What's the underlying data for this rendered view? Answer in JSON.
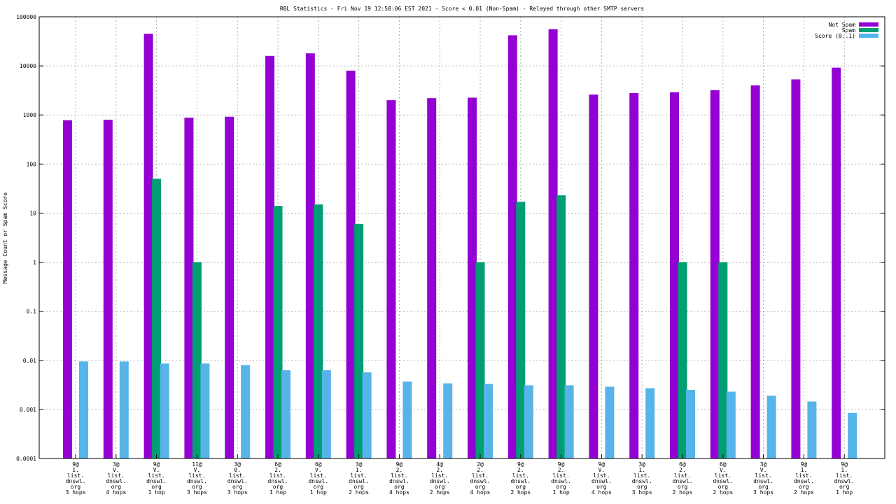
{
  "chart_data": {
    "type": "bar",
    "title": "RBL Statistics - Fri Nov 19 12:58:06 EST 2021 - Score < 0.01 (Non-Spam) - Relayed through other SMTP servers",
    "ylabel": "Message Count or Spam Score",
    "xlabel": "",
    "yscale": "log",
    "ylim": [
      0.0001,
      100000
    ],
    "yticks": [
      "0.0001",
      "0.001",
      "0.01",
      "0.1",
      "1",
      "10",
      "100",
      "1000",
      "10000",
      "100000"
    ],
    "grid": true,
    "legend_position": "top-right",
    "colors": {
      "not_spam": "#9400d3",
      "spam": "#009e73",
      "score": "#56b4e9"
    },
    "categories": [
      [
        "9@",
        "1.",
        "list.",
        "dnswl.",
        "org",
        "3 hops"
      ],
      [
        "3@",
        "V.",
        "list.",
        "dnswl.",
        "org",
        "4 hops"
      ],
      [
        "9@",
        "V.",
        "list.",
        "dnswl.",
        "org",
        "1 hop"
      ],
      [
        "11@",
        "V.",
        "list.",
        "dnswl.",
        "org",
        "3 hops"
      ],
      [
        "3@",
        "0.",
        "list.",
        "dnswl.",
        "org",
        "3 hops"
      ],
      [
        "6@",
        "2.",
        "list.",
        "dnswl.",
        "org",
        "1 hop"
      ],
      [
        "6@",
        "V.",
        "list.",
        "dnswl.",
        "org",
        "1 hop"
      ],
      [
        "3@",
        "1.",
        "list.",
        "dnswl.",
        "org",
        "2 hops"
      ],
      [
        "9@",
        "2.",
        "list.",
        "dnswl.",
        "org",
        "4 hops"
      ],
      [
        "4@",
        "2.",
        "list.",
        "dnswl.",
        "org",
        "2 hops"
      ],
      [
        "2@",
        "2.",
        "list.",
        "dnswl.",
        "org",
        "4 hops"
      ],
      [
        "9@",
        "2.",
        "list.",
        "dnswl.",
        "org",
        "2 hops"
      ],
      [
        "9@",
        "2.",
        "list.",
        "dnswl.",
        "org",
        "1 hop"
      ],
      [
        "9@",
        "V.",
        "list.",
        "dnswl.",
        "org",
        "4 hops"
      ],
      [
        "3@",
        "1.",
        "list.",
        "dnswl.",
        "org",
        "3 hops"
      ],
      [
        "6@",
        "2.",
        "list.",
        "dnswl.",
        "org",
        "2 hops"
      ],
      [
        "6@",
        "V.",
        "list.",
        "dnswl.",
        "org",
        "2 hops"
      ],
      [
        "3@",
        "V.",
        "list.",
        "dnswl.",
        "org",
        "3 hops"
      ],
      [
        "9@",
        "1.",
        "list.",
        "dnswl.",
        "org",
        "2 hops"
      ],
      [
        "9@",
        "1.",
        "list.",
        "dnswl.",
        "org",
        "1 hop"
      ]
    ],
    "series": [
      {
        "name": "Not Spam",
        "color": "#9400d3",
        "values": [
          780,
          800,
          45000,
          880,
          920,
          16000,
          18000,
          8000,
          2000,
          2200,
          2250,
          42000,
          56000,
          2600,
          2800,
          2900,
          3200,
          4000,
          5300,
          9200
        ]
      },
      {
        "name": "Spam",
        "color": "#009e73",
        "values": [
          null,
          null,
          50,
          1,
          null,
          14,
          15,
          6,
          null,
          null,
          1,
          17,
          23,
          null,
          null,
          1,
          1,
          null,
          null,
          null
        ]
      },
      {
        "name": "Score (0..1)",
        "color": "#56b4e9",
        "values": [
          0.0095,
          0.0095,
          0.0086,
          0.0086,
          0.008,
          0.0063,
          0.0063,
          0.0057,
          0.0037,
          0.0034,
          0.0033,
          0.0031,
          0.0031,
          0.0029,
          0.0027,
          0.0025,
          0.0023,
          0.0019,
          0.00145,
          0.00085
        ]
      }
    ]
  }
}
